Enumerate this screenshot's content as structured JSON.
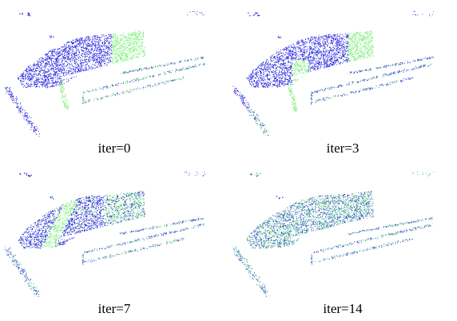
{
  "colors": {
    "blue": "#1a1adb",
    "green": "#72ec72",
    "teal": "#3a9a9a",
    "background": "#ffffff"
  },
  "panels": [
    {
      "caption": "iter=0",
      "green_fraction": 0.4
    },
    {
      "caption": "iter=3",
      "green_fraction": 0.25
    },
    {
      "caption": "iter=7",
      "green_fraction": 0.3
    },
    {
      "caption": "iter=14",
      "green_fraction": 0.5
    }
  ]
}
